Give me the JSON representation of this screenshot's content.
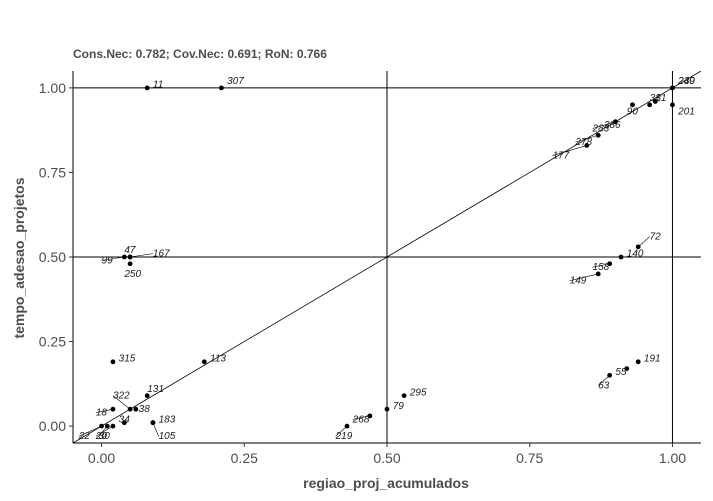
{
  "chart_data": {
    "type": "scatter",
    "subtitle": "Cons.Nec: 0.782; Cov.Nec: 0.691; RoN: 0.766",
    "xlabel": "regiao_proj_acumulados",
    "ylabel": "tempo_adesao_projetos",
    "xlim": [
      -0.05,
      1.05
    ],
    "ylim": [
      -0.05,
      1.05
    ],
    "x_ticks": [
      "0.00",
      "0.25",
      "0.50",
      "0.75",
      "1.00"
    ],
    "x_tick_values": [
      0,
      0.25,
      0.5,
      0.75,
      1.0
    ],
    "y_ticks": [
      "0.00",
      "0.25",
      "0.50",
      "0.75",
      "1.00"
    ],
    "y_tick_values": [
      0,
      0.25,
      0.5,
      0.75,
      1.0
    ],
    "reference_lines": {
      "vertical": [
        0.5,
        1.0
      ],
      "horizontal": [
        0.5,
        1.0
      ],
      "diagonal": true
    },
    "grid": false,
    "points": [
      {
        "x": 0.08,
        "y": 1.0,
        "label": "11",
        "lx": 0.09,
        "ly": 1.01
      },
      {
        "x": 0.21,
        "y": 1.0,
        "label": "307",
        "lx": 0.22,
        "ly": 1.02
      },
      {
        "x": 1.0,
        "y": 1.0,
        "label": "239",
        "lx": 1.01,
        "ly": 1.02
      },
      {
        "x": 1.0,
        "y": 1.0,
        "label": "240",
        "lx": 1.01,
        "ly": 1.02
      },
      {
        "x": 1.0,
        "y": 0.95,
        "label": "201",
        "lx": 1.01,
        "ly": 0.93
      },
      {
        "x": 0.96,
        "y": 0.95,
        "label": "31",
        "lx": 0.96,
        "ly": 0.97
      },
      {
        "x": 0.97,
        "y": 0.96,
        "label": "81",
        "lx": 0.97,
        "ly": 0.97
      },
      {
        "x": 0.93,
        "y": 0.95,
        "label": "90",
        "lx": 0.92,
        "ly": 0.93
      },
      {
        "x": 0.9,
        "y": 0.9,
        "label": "283",
        "lx": 0.86,
        "ly": 0.88
      },
      {
        "x": 0.9,
        "y": 0.9,
        "label": "286",
        "lx": 0.88,
        "ly": 0.89
      },
      {
        "x": 0.87,
        "y": 0.86,
        "label": "278",
        "lx": 0.83,
        "ly": 0.84
      },
      {
        "x": 0.85,
        "y": 0.83,
        "label": "177",
        "lx": 0.79,
        "ly": 0.8
      },
      {
        "x": 0.91,
        "y": 0.5,
        "label": "140",
        "lx": 0.92,
        "ly": 0.51
      },
      {
        "x": 0.94,
        "y": 0.53,
        "label": "72",
        "lx": 0.96,
        "ly": 0.56
      },
      {
        "x": 0.89,
        "y": 0.48,
        "label": "158",
        "lx": 0.86,
        "ly": 0.47
      },
      {
        "x": 0.87,
        "y": 0.45,
        "label": "149",
        "lx": 0.82,
        "ly": 0.43
      },
      {
        "x": 0.94,
        "y": 0.19,
        "label": "191",
        "lx": 0.95,
        "ly": 0.2
      },
      {
        "x": 0.92,
        "y": 0.17,
        "label": "55",
        "lx": 0.9,
        "ly": 0.16
      },
      {
        "x": 0.89,
        "y": 0.15,
        "label": "63",
        "lx": 0.87,
        "ly": 0.12
      },
      {
        "x": 0.5,
        "y": 0.05,
        "label": "79",
        "lx": 0.51,
        "ly": 0.06
      },
      {
        "x": 0.53,
        "y": 0.09,
        "label": "295",
        "lx": 0.54,
        "ly": 0.1
      },
      {
        "x": 0.47,
        "y": 0.03,
        "label": "268",
        "lx": 0.44,
        "ly": 0.02
      },
      {
        "x": 0.43,
        "y": 0.0,
        "label": "219",
        "lx": 0.41,
        "ly": -0.03
      },
      {
        "x": 0.05,
        "y": 0.5,
        "label": "47",
        "lx": 0.04,
        "ly": 0.52
      },
      {
        "x": 0.05,
        "y": 0.5,
        "label": "167",
        "lx": 0.09,
        "ly": 0.51
      },
      {
        "x": 0.04,
        "y": 0.5,
        "label": "99",
        "lx": 0.0,
        "ly": 0.49
      },
      {
        "x": 0.05,
        "y": 0.48,
        "label": "250",
        "lx": 0.04,
        "ly": 0.45
      },
      {
        "x": 0.02,
        "y": 0.19,
        "label": "315",
        "lx": 0.03,
        "ly": 0.2
      },
      {
        "x": 0.18,
        "y": 0.19,
        "label": "113",
        "lx": 0.19,
        "ly": 0.2
      },
      {
        "x": 0.02,
        "y": 0.05,
        "label": "18",
        "lx": -0.01,
        "ly": 0.04
      },
      {
        "x": 0.05,
        "y": 0.05,
        "label": "322",
        "lx": 0.02,
        "ly": 0.09
      },
      {
        "x": 0.08,
        "y": 0.09,
        "label": "131",
        "lx": 0.08,
        "ly": 0.11
      },
      {
        "x": 0.06,
        "y": 0.05,
        "label": "38",
        "lx": 0.065,
        "ly": 0.05
      },
      {
        "x": 0.09,
        "y": 0.01,
        "label": "183",
        "lx": 0.1,
        "ly": 0.02
      },
      {
        "x": 0.09,
        "y": 0.01,
        "label": "105",
        "lx": 0.1,
        "ly": -0.03
      },
      {
        "x": 0.04,
        "y": 0.01,
        "label": "34",
        "lx": 0.03,
        "ly": 0.02
      },
      {
        "x": 0.02,
        "y": 0.0,
        "label": "20",
        "lx": -0.01,
        "ly": -0.03
      },
      {
        "x": 0.01,
        "y": 0.0,
        "label": "30",
        "lx": -0.005,
        "ly": -0.03
      },
      {
        "x": 0.0,
        "y": 0.0,
        "label": "22",
        "lx": -0.04,
        "ly": -0.03
      }
    ]
  }
}
